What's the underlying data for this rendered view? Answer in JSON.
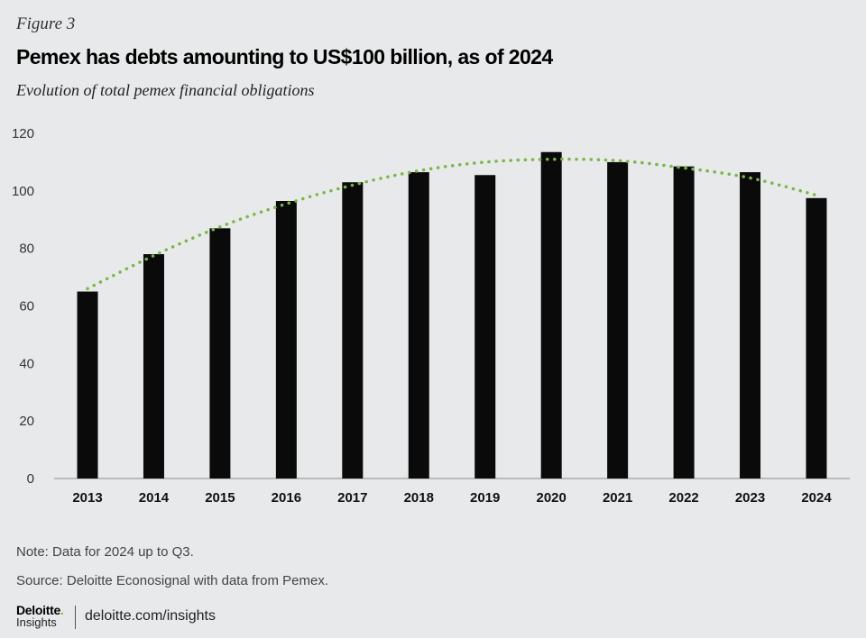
{
  "header": {
    "figure_label": "Figure 3",
    "title": "Pemex has debts amounting to US$100 billion, as of 2024",
    "subtitle": "Evolution of total pemex financial obligations"
  },
  "footer": {
    "note": "Note: Data for 2024 up to Q3.",
    "source": "Source: Deloitte Econosignal with data from Pemex.",
    "brand_name": "Deloitte",
    "brand_dot": ".",
    "brand_sub": "Insights",
    "url": "deloitte.com/insights"
  },
  "chart_data": {
    "type": "bar",
    "title": "Pemex has debts amounting to US$100 billion, as of 2024",
    "subtitle": "Evolution of total pemex financial obligations",
    "xlabel": "",
    "ylabel": "",
    "categories": [
      "2013",
      "2014",
      "2015",
      "2016",
      "2017",
      "2018",
      "2019",
      "2020",
      "2021",
      "2022",
      "2023",
      "2024"
    ],
    "values": [
      65,
      78,
      87,
      96.5,
      103,
      106.5,
      105.5,
      113.5,
      110,
      108.5,
      106.5,
      97.5
    ],
    "ylim": [
      0,
      120
    ],
    "yticks": [
      "0",
      "20",
      "40",
      "60",
      "80",
      "100",
      "120"
    ],
    "grid": false,
    "bar_color": "#0a0a0a",
    "trendline": {
      "style": "dotted",
      "color": "#7ab648",
      "values": [
        66,
        77.5,
        87.5,
        95.5,
        102,
        107,
        110,
        111,
        110.5,
        108,
        104.5,
        98.5
      ]
    }
  }
}
